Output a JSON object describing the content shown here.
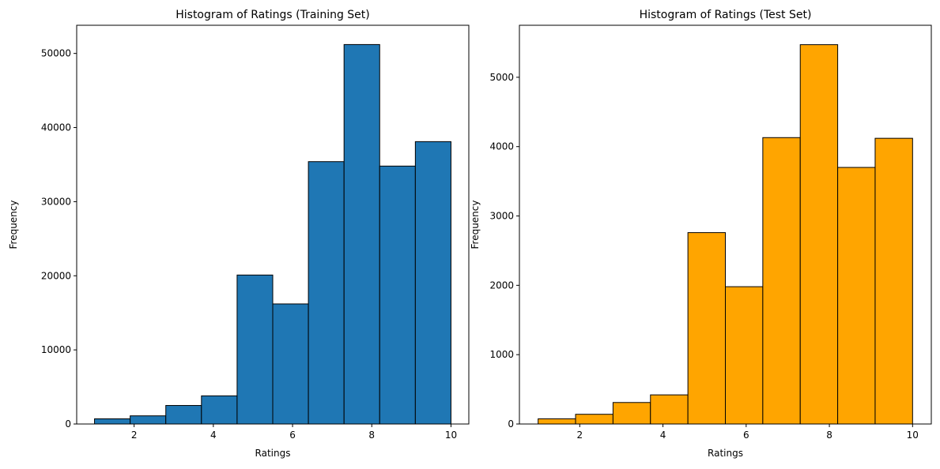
{
  "chart_data": [
    {
      "type": "bar",
      "histogram": true,
      "title": "Histogram of Ratings (Training Set)",
      "xlabel": "Ratings",
      "ylabel": "Frequency",
      "xlim": [
        0.55,
        10.45
      ],
      "ylim": [
        0,
        53800
      ],
      "bin_edges": [
        1.0,
        1.9,
        2.8,
        3.7,
        4.6,
        5.5,
        6.4,
        7.3,
        8.2,
        9.1,
        10.0
      ],
      "values": [
        700,
        1100,
        2500,
        3800,
        20100,
        16200,
        35400,
        51200,
        34800,
        38100
      ],
      "xticks": [
        2,
        4,
        6,
        8,
        10
      ],
      "yticks": [
        0,
        10000,
        20000,
        30000,
        40000,
        50000
      ],
      "bar_color": "#1f77b4",
      "edge_color": "#000000",
      "grid": false
    },
    {
      "type": "bar",
      "histogram": true,
      "title": "Histogram of Ratings (Test Set)",
      "xlabel": "Ratings",
      "ylabel": "Frequency",
      "xlim": [
        0.55,
        10.45
      ],
      "ylim": [
        0,
        5750
      ],
      "bin_edges": [
        1.0,
        1.9,
        2.8,
        3.7,
        4.6,
        5.5,
        6.4,
        7.3,
        8.2,
        9.1,
        10.0
      ],
      "values": [
        75,
        140,
        310,
        420,
        2760,
        1980,
        4130,
        5470,
        3700,
        4120
      ],
      "xticks": [
        2,
        4,
        6,
        8,
        10
      ],
      "yticks": [
        0,
        1000,
        2000,
        3000,
        4000,
        5000
      ],
      "bar_color": "#ffa500",
      "edge_color": "#000000",
      "grid": false
    }
  ]
}
